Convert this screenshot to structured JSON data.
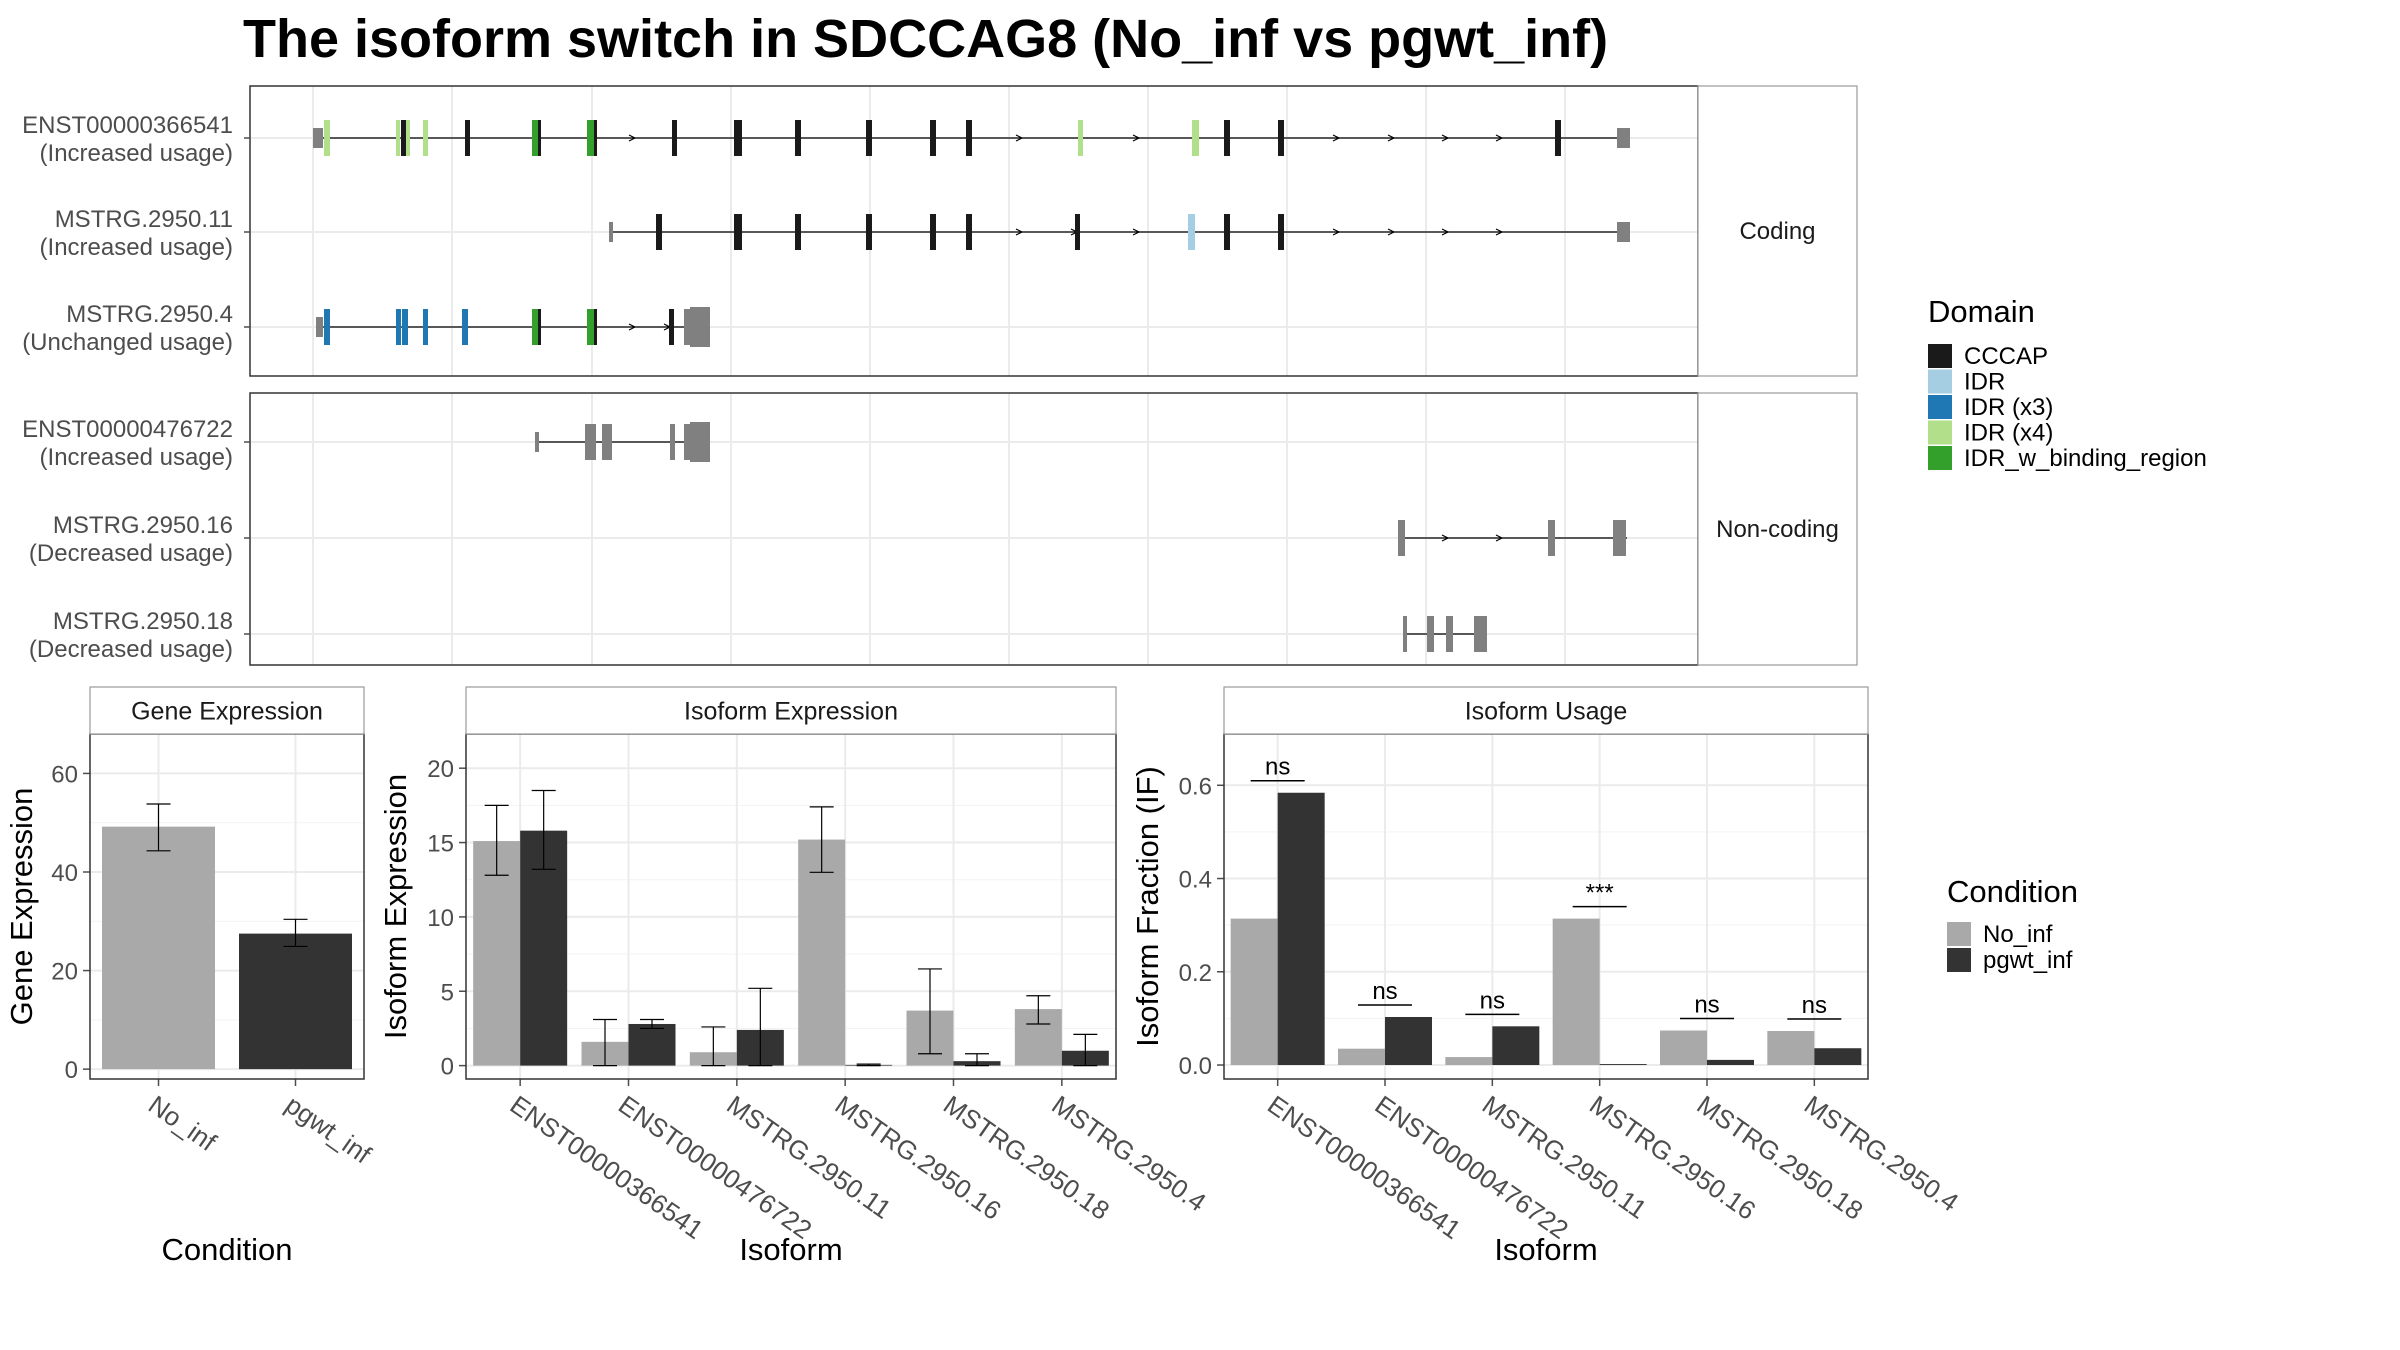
{
  "figure": {
    "title": "The isoform switch in SDCCAG8 (No_inf vs pgwt_inf)"
  },
  "colors": {
    "No_inf": "#a9a9a9",
    "pgwt_inf": "#333333",
    "CCCAP": "#1a1a1a",
    "IDR": "#a6cee3",
    "IDR (x3)": "#1f78b4",
    "IDR (x4)": "#b2df8a",
    "IDR_w_binding_region": "#33a02c",
    "noncoding_exon": "#808080"
  },
  "chart_data": [
    {
      "type": "gene_structure",
      "panels": [
        {
          "label": "Coding",
          "isoforms": [
            {
              "name": "ENST00000366541",
              "usage": "(Increased usage)"
            },
            {
              "name": "MSTRG.2950.11",
              "usage": "(Increased usage)"
            },
            {
              "name": "MSTRG.2950.4",
              "usage": "(Unchanged usage)"
            }
          ]
        },
        {
          "label": "Non-coding",
          "isoforms": [
            {
              "name": "ENST00000476722",
              "usage": "(Increased usage)"
            },
            {
              "name": "MSTRG.2950.16",
              "usage": "(Decreased usage)"
            },
            {
              "name": "MSTRG.2950.18",
              "usage": "(Decreased usage)"
            }
          ]
        }
      ],
      "legend": {
        "title": "Domain",
        "entries": [
          "CCCAP",
          "IDR",
          "IDR (x3)",
          "IDR (x4)",
          "IDR_w_binding_region"
        ]
      }
    },
    {
      "type": "bar",
      "title": "Gene Expression",
      "xlabel": "Condition",
      "ylabel": "Gene Expression",
      "categories": [
        "No_inf",
        "pgwt_inf"
      ],
      "values": [
        49.2,
        27.5
      ],
      "errors": [
        [
          44.3,
          53.8
        ],
        [
          24.9,
          30.4
        ]
      ],
      "ylim": [
        -2,
        68
      ],
      "yticks": [
        0,
        20,
        40,
        60
      ]
    },
    {
      "type": "bar",
      "title": "Isoform Expression",
      "xlabel": "Isoform",
      "ylabel": "Isoform Expression",
      "categories": [
        "ENST00000366541",
        "ENST00000476722",
        "MSTRG.2950.11",
        "MSTRG.2950.16",
        "MSTRG.2950.18",
        "MSTRG.2950.4"
      ],
      "series": [
        {
          "name": "No_inf",
          "values": [
            15.1,
            1.6,
            0.9,
            15.2,
            3.7,
            3.8
          ],
          "errors": [
            [
              12.8,
              17.5
            ],
            [
              0.0,
              3.1
            ],
            [
              0.0,
              2.6
            ],
            [
              13.0,
              17.4
            ],
            [
              0.8,
              6.5
            ],
            [
              2.8,
              4.7
            ]
          ]
        },
        {
          "name": "pgwt_inf",
          "values": [
            15.8,
            2.8,
            2.4,
            0.05,
            0.3,
            1.0
          ],
          "errors": [
            [
              13.2,
              18.5
            ],
            [
              2.5,
              3.1
            ],
            [
              0.0,
              5.2
            ],
            [
              0.0,
              0.1
            ],
            [
              0.0,
              0.8
            ],
            [
              0.0,
              2.1
            ]
          ]
        }
      ],
      "ylim": [
        -0.9,
        22.3
      ],
      "yticks": [
        0,
        5,
        10,
        15,
        20
      ]
    },
    {
      "type": "bar",
      "title": "Isoform Usage",
      "xlabel": "Isoform",
      "ylabel": "Isoform Fraction (IF)",
      "categories": [
        "ENST00000366541",
        "ENST00000476722",
        "MSTRG.2950.11",
        "MSTRG.2950.16",
        "MSTRG.2950.18",
        "MSTRG.2950.4"
      ],
      "series": [
        {
          "name": "No_inf",
          "values": [
            0.314,
            0.035,
            0.017,
            0.314,
            0.074,
            0.073
          ]
        },
        {
          "name": "pgwt_inf",
          "values": [
            0.584,
            0.103,
            0.083,
            0.002,
            0.011,
            0.036
          ]
        }
      ],
      "significance": [
        "ns",
        "ns",
        "ns",
        "***",
        "ns",
        "ns"
      ],
      "ylim": [
        -0.03,
        0.71
      ],
      "yticks": [
        0.0,
        0.2,
        0.4,
        0.6
      ]
    }
  ],
  "condition_legend": {
    "title": "Condition",
    "entries": [
      "No_inf",
      "pgwt_inf"
    ]
  }
}
